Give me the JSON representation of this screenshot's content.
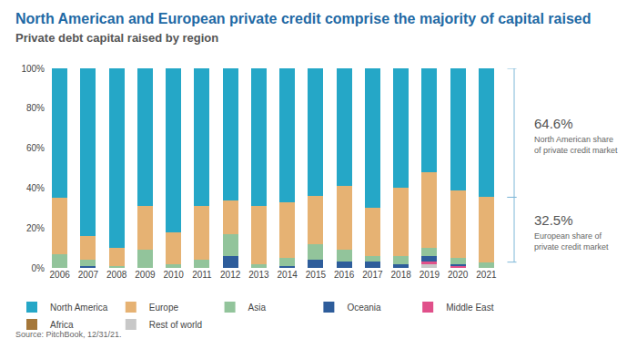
{
  "chart_data": {
    "type": "bar",
    "title": "North American and European private credit comprise the majority of capital raised",
    "subtitle": "Private debt capital raised by region",
    "source": "Source: PitchBook, 12/31/21.",
    "stacked": true,
    "grid": false,
    "legend": "bottom",
    "categories": [
      "2006",
      "2007",
      "2008",
      "2009",
      "2010",
      "2011",
      "2012",
      "2013",
      "2014",
      "2015",
      "2016",
      "2017",
      "2018",
      "2019",
      "2020",
      "2021"
    ],
    "ylim": [
      0,
      100
    ],
    "yticks": [
      {
        "value": 0,
        "label": "0%"
      },
      {
        "value": 20,
        "label": "20%"
      },
      {
        "value": 40,
        "label": "40%"
      },
      {
        "value": 60,
        "label": "60%"
      },
      {
        "value": 80,
        "label": "80%"
      },
      {
        "value": 100,
        "label": "100%"
      }
    ],
    "series": [
      {
        "name": "North America",
        "color": "#25a7c7",
        "values": [
          65,
          84,
          90,
          69,
          82,
          69,
          66,
          69,
          67,
          64,
          59,
          70,
          60,
          52,
          61,
          64.6
        ]
      },
      {
        "name": "Europe",
        "color": "#e6b273",
        "values": [
          28,
          12,
          9,
          22,
          16,
          27,
          17,
          29,
          28,
          24,
          32,
          24,
          34,
          38,
          34,
          32.5
        ]
      },
      {
        "name": "Asia",
        "color": "#92c49b",
        "values": [
          7,
          3,
          1,
          9,
          2,
          4,
          11,
          2,
          4,
          8,
          6,
          3,
          4,
          4,
          3,
          2.9
        ]
      },
      {
        "name": "Oceania",
        "color": "#2e5d9b",
        "values": [
          0,
          1,
          0,
          0,
          0,
          0,
          6,
          0,
          1,
          4,
          3,
          3,
          2,
          3,
          1,
          0
        ]
      },
      {
        "name": "Middle East",
        "color": "#e0508a",
        "values": [
          0,
          0,
          0,
          0,
          0,
          0,
          0,
          0,
          0,
          0,
          0,
          0,
          0,
          1,
          1,
          0
        ]
      },
      {
        "name": "Africa",
        "color": "#a5773a",
        "values": [
          0,
          0,
          0,
          0,
          0,
          0,
          0,
          0,
          0,
          0,
          0,
          0,
          0,
          0,
          0,
          0
        ]
      },
      {
        "name": "Rest of world",
        "color": "#c8c8c8",
        "values": [
          0,
          0,
          0,
          0,
          0,
          0,
          0,
          0,
          0,
          0,
          0,
          0,
          0,
          2,
          0,
          0
        ]
      }
    ],
    "annotations": [
      {
        "series": "North America",
        "value_text": "64.6%",
        "lines": [
          "North American share",
          "of private credit market"
        ]
      },
      {
        "series": "Europe",
        "value_text": "32.5%",
        "lines": [
          "European share of",
          "private credit market"
        ]
      }
    ]
  }
}
